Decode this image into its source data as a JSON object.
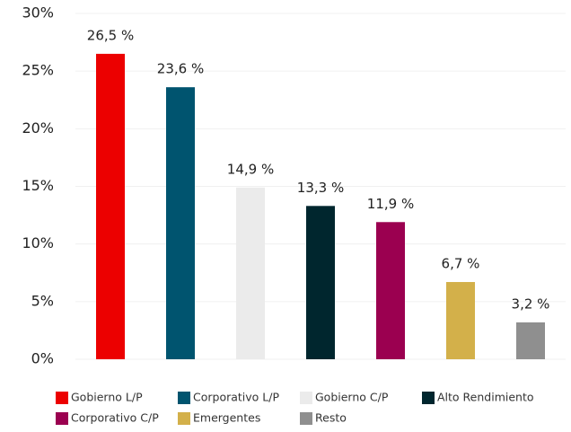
{
  "chart_data": {
    "type": "bar",
    "categories": [
      "Gobierno L/P",
      "Corporativo L/P",
      "Gobierno C/P",
      "Alto Rendimiento",
      "Corporativo C/P",
      "Emergentes",
      "Resto"
    ],
    "values": [
      26.5,
      23.6,
      14.9,
      13.3,
      11.9,
      6.7,
      3.2
    ],
    "value_labels": [
      "26,5 %",
      "23,6 %",
      "14,9 %",
      "13,3 %",
      "11,9 %",
      "6,7 %",
      "3,2 %"
    ],
    "colors": [
      "#ec0000",
      "#00546f",
      "#ebebeb",
      "#00262e",
      "#9b0050",
      "#d3b04a",
      "#8f8f8f"
    ],
    "ylim": [
      0,
      30
    ],
    "yticks": [
      {
        "value": 0,
        "label": "0%"
      },
      {
        "value": 5,
        "label": "5%"
      },
      {
        "value": 10,
        "label": "10%"
      },
      {
        "value": 15,
        "label": "15%"
      },
      {
        "value": 20,
        "label": "20%"
      },
      {
        "value": 25,
        "label": "25%"
      },
      {
        "value": 30,
        "label": "30%"
      }
    ],
    "grid": true
  }
}
